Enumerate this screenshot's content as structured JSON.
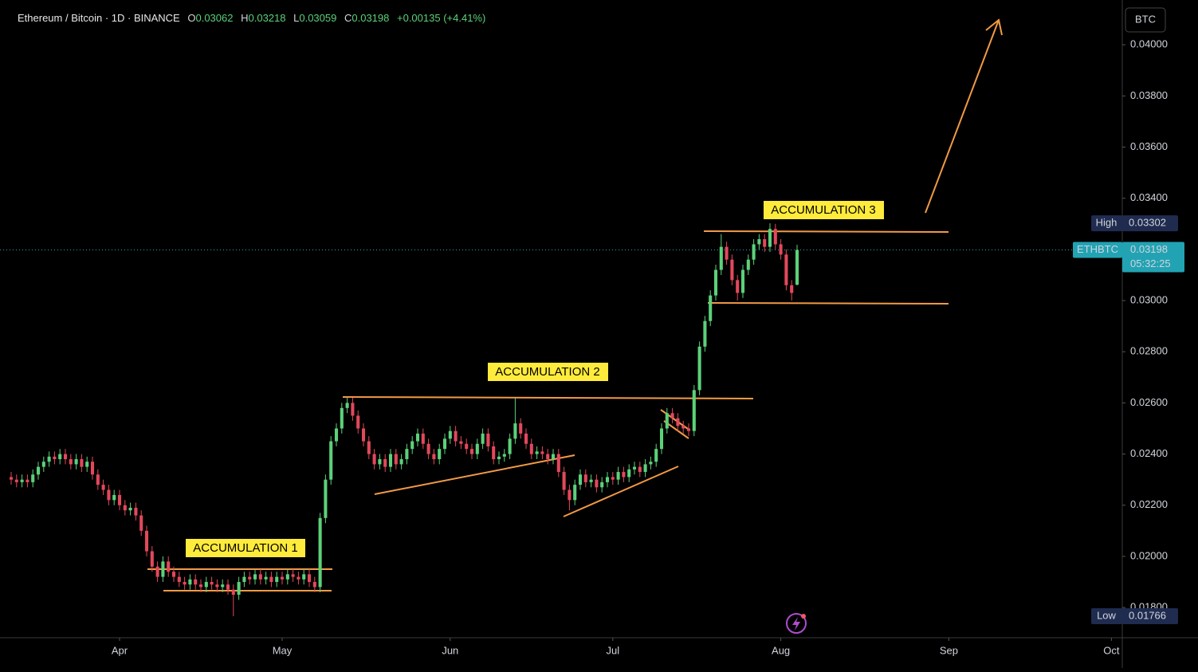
{
  "chart_data": {
    "type": "candlestick",
    "title": "Ethereum / Bitcoin · 1D · BINANCE",
    "ohlc_labels": [
      "O",
      "H",
      "L",
      "C"
    ],
    "change": "+0.00135 (+4.41%)",
    "currency": "BTC",
    "symbol": "ETHBTC",
    "countdown": "05:32:25",
    "high_label": "High",
    "low_label": "Low",
    "annotations": [
      "ACCUMULATION 1",
      "ACCUMULATION 2",
      "ACCUMULATION 3"
    ],
    "up_color": "#5cd17a",
    "down_color": "#e2485c",
    "xlim": [
      -2.06,
      205
    ],
    "xticks": [
      {
        "value": 20,
        "label": "Apr"
      },
      {
        "value": 50,
        "label": "May"
      },
      {
        "value": 81,
        "label": "Jun"
      },
      {
        "value": 111,
        "label": "Jul"
      },
      {
        "value": 142,
        "label": "Aug"
      },
      {
        "value": 173,
        "label": "Sep"
      },
      {
        "value": 203,
        "label": "Oct"
      }
    ],
    "ylim": [
      0.01682,
      0.0415
    ],
    "yticks": [
      {
        "value": 0.018,
        "label": "0.01800"
      },
      {
        "value": 0.02,
        "label": "0.02000"
      },
      {
        "value": 0.022,
        "label": "0.02200"
      },
      {
        "value": 0.024,
        "label": "0.02400"
      },
      {
        "value": 0.026,
        "label": "0.02600"
      },
      {
        "value": 0.028,
        "label": "0.02800"
      },
      {
        "value": 0.03,
        "label": "0.03000"
      },
      {
        "value": 0.032,
        "label": "0.03200"
      },
      {
        "value": 0.034,
        "label": "0.03400"
      },
      {
        "value": 0.036,
        "label": "0.03600"
      },
      {
        "value": 0.038,
        "label": "0.03800"
      },
      {
        "value": 0.04,
        "label": "0.04000"
      }
    ],
    "open": [
      0.0231,
      0.023,
      0.0229,
      0.023,
      0.0229,
      0.0232,
      0.0235,
      0.0237,
      0.0239,
      0.0238,
      0.024,
      0.0238,
      0.0236,
      0.0238,
      0.0235,
      0.0237,
      0.0232,
      0.0228,
      0.0226,
      0.0222,
      0.0224,
      0.022,
      0.0218,
      0.0219,
      0.0216,
      0.021,
      0.0202,
      0.0196,
      0.0192,
      0.0198,
      0.0194,
      0.0192,
      0.019,
      0.0189,
      0.0191,
      0.0189,
      0.0188,
      0.019,
      0.0189,
      0.0188,
      0.0189,
      0.0187,
      0.0185,
      0.019,
      0.0192,
      0.0191,
      0.0193,
      0.0191,
      0.0192,
      0.019,
      0.0192,
      0.0191,
      0.0193,
      0.0192,
      0.0191,
      0.0193,
      0.019,
      0.0188,
      0.0215,
      0.023,
      0.0245,
      0.025,
      0.0258,
      0.026,
      0.0255,
      0.025,
      0.0245,
      0.024,
      0.0236,
      0.0238,
      0.0235,
      0.024,
      0.0236,
      0.0238,
      0.0242,
      0.0245,
      0.0248,
      0.0244,
      0.024,
      0.0238,
      0.0242,
      0.0246,
      0.0249,
      0.0245,
      0.0244,
      0.0242,
      0.024,
      0.0244,
      0.0248,
      0.0243,
      0.0238,
      0.0239,
      0.024,
      0.0246,
      0.0252,
      0.0248,
      0.0244,
      0.024,
      0.0241,
      0.024,
      0.0238,
      0.024,
      0.0233,
      0.0226,
      0.0222,
      0.0228,
      0.0232,
      0.0229,
      0.023,
      0.0227,
      0.0229,
      0.0231,
      0.023,
      0.0233,
      0.0231,
      0.0234,
      0.0235,
      0.0233,
      0.0236,
      0.0237,
      0.0242,
      0.025,
      0.0256,
      0.0254,
      0.0251,
      0.025,
      0.0249,
      0.0265,
      0.0282,
      0.0292,
      0.0302,
      0.0312,
      0.0321,
      0.0316,
      0.0308,
      0.0303,
      0.0312,
      0.0316,
      0.0322,
      0.0324,
      0.0321,
      0.0328,
      0.0322,
      0.0318,
      0.0306,
      0.03062
    ],
    "high": [
      0.0233,
      0.0232,
      0.0232,
      0.0232,
      0.0234,
      0.0237,
      0.0239,
      0.0241,
      0.0241,
      0.0242,
      0.0242,
      0.024,
      0.024,
      0.024,
      0.0239,
      0.0239,
      0.0234,
      0.023,
      0.0228,
      0.0226,
      0.0226,
      0.0222,
      0.0221,
      0.0221,
      0.0218,
      0.0212,
      0.0204,
      0.0198,
      0.02,
      0.02,
      0.0196,
      0.0194,
      0.0192,
      0.0193,
      0.0193,
      0.0191,
      0.0192,
      0.0192,
      0.0191,
      0.0191,
      0.0191,
      0.0189,
      0.0192,
      0.0194,
      0.0194,
      0.0195,
      0.0195,
      0.0194,
      0.0194,
      0.0194,
      0.0194,
      0.0195,
      0.0195,
      0.0194,
      0.0195,
      0.0195,
      0.0192,
      0.0217,
      0.0232,
      0.0247,
      0.0252,
      0.026,
      0.0262,
      0.0262,
      0.0257,
      0.0252,
      0.0247,
      0.0242,
      0.024,
      0.024,
      0.0242,
      0.0242,
      0.024,
      0.0244,
      0.0247,
      0.025,
      0.025,
      0.0246,
      0.0242,
      0.0244,
      0.0248,
      0.0251,
      0.0251,
      0.0247,
      0.0246,
      0.0244,
      0.0246,
      0.025,
      0.025,
      0.0245,
      0.0241,
      0.0242,
      0.0248,
      0.0262,
      0.0254,
      0.025,
      0.0246,
      0.0243,
      0.0243,
      0.0242,
      0.0242,
      0.0242,
      0.0235,
      0.0228,
      0.023,
      0.0234,
      0.0234,
      0.0232,
      0.0232,
      0.0231,
      0.0233,
      0.0233,
      0.0235,
      0.0235,
      0.0236,
      0.0237,
      0.0237,
      0.0238,
      0.0239,
      0.0244,
      0.0252,
      0.0258,
      0.0258,
      0.0256,
      0.0253,
      0.0252,
      0.0267,
      0.0284,
      0.0294,
      0.0304,
      0.0314,
      0.0326,
      0.0323,
      0.0318,
      0.031,
      0.0314,
      0.0318,
      0.0324,
      0.0326,
      0.0326,
      0.03302,
      0.033,
      0.0324,
      0.032,
      0.0308,
      0.03218
    ],
    "low": [
      0.0228,
      0.0227,
      0.0227,
      0.0227,
      0.0227,
      0.023,
      0.0233,
      0.0235,
      0.0236,
      0.0236,
      0.0236,
      0.0234,
      0.0234,
      0.0233,
      0.0233,
      0.023,
      0.0226,
      0.0224,
      0.022,
      0.022,
      0.0218,
      0.0216,
      0.0216,
      0.0214,
      0.0208,
      0.02,
      0.0194,
      0.019,
      0.019,
      0.0192,
      0.019,
      0.0188,
      0.0187,
      0.0187,
      0.0187,
      0.0186,
      0.0186,
      0.0187,
      0.0186,
      0.0186,
      0.0185,
      0.01766,
      0.0183,
      0.0188,
      0.0189,
      0.0189,
      0.0189,
      0.0189,
      0.0188,
      0.0188,
      0.0189,
      0.0189,
      0.019,
      0.0189,
      0.0189,
      0.0188,
      0.0186,
      0.0186,
      0.0213,
      0.0228,
      0.0243,
      0.0248,
      0.0256,
      0.0253,
      0.0248,
      0.0243,
      0.0238,
      0.0234,
      0.0234,
      0.0233,
      0.0233,
      0.0234,
      0.0234,
      0.0236,
      0.024,
      0.0243,
      0.0242,
      0.0238,
      0.0236,
      0.0236,
      0.024,
      0.0244,
      0.0243,
      0.0242,
      0.024,
      0.0238,
      0.0238,
      0.0242,
      0.0241,
      0.0236,
      0.0236,
      0.0237,
      0.0238,
      0.0244,
      0.0246,
      0.0242,
      0.0238,
      0.0238,
      0.0238,
      0.0236,
      0.0236,
      0.0231,
      0.0224,
      0.0218,
      0.022,
      0.0226,
      0.0227,
      0.0227,
      0.0225,
      0.0225,
      0.0227,
      0.0228,
      0.0228,
      0.0229,
      0.0229,
      0.0232,
      0.0231,
      0.0231,
      0.0234,
      0.0235,
      0.024,
      0.0248,
      0.0252,
      0.0249,
      0.0248,
      0.0247,
      0.0247,
      0.0263,
      0.028,
      0.029,
      0.03,
      0.031,
      0.0314,
      0.0306,
      0.03,
      0.0301,
      0.031,
      0.0314,
      0.032,
      0.0319,
      0.0319,
      0.032,
      0.0316,
      0.0304,
      0.03,
      0.03059
    ],
    "close": [
      0.023,
      0.0229,
      0.023,
      0.0229,
      0.0232,
      0.0235,
      0.0237,
      0.0239,
      0.0238,
      0.024,
      0.0238,
      0.0236,
      0.0238,
      0.0235,
      0.0237,
      0.0232,
      0.0228,
      0.0226,
      0.0222,
      0.0224,
      0.022,
      0.0218,
      0.0219,
      0.0216,
      0.021,
      0.0202,
      0.0196,
      0.0192,
      0.0198,
      0.0194,
      0.0192,
      0.019,
      0.0189,
      0.0191,
      0.0189,
      0.0188,
      0.019,
      0.0189,
      0.0188,
      0.0189,
      0.0187,
      0.0185,
      0.019,
      0.0192,
      0.0191,
      0.0193,
      0.0191,
      0.0192,
      0.019,
      0.0192,
      0.0191,
      0.0193,
      0.0192,
      0.0191,
      0.0193,
      0.019,
      0.0188,
      0.0215,
      0.023,
      0.0245,
      0.025,
      0.0258,
      0.026,
      0.0255,
      0.025,
      0.0245,
      0.024,
      0.0236,
      0.0238,
      0.0235,
      0.024,
      0.0236,
      0.0238,
      0.0242,
      0.0245,
      0.0248,
      0.0244,
      0.024,
      0.0238,
      0.0242,
      0.0246,
      0.0249,
      0.0245,
      0.0244,
      0.0242,
      0.024,
      0.0244,
      0.0248,
      0.0243,
      0.0238,
      0.0239,
      0.024,
      0.0246,
      0.0252,
      0.0248,
      0.0244,
      0.024,
      0.0241,
      0.024,
      0.0238,
      0.024,
      0.0233,
      0.0226,
      0.0222,
      0.0228,
      0.0232,
      0.0229,
      0.023,
      0.0227,
      0.0229,
      0.0231,
      0.023,
      0.0233,
      0.0231,
      0.0234,
      0.0235,
      0.0233,
      0.0236,
      0.0237,
      0.0242,
      0.025,
      0.0256,
      0.0254,
      0.0251,
      0.025,
      0.0249,
      0.0265,
      0.0282,
      0.0292,
      0.0302,
      0.0312,
      0.0321,
      0.0316,
      0.0308,
      0.0303,
      0.0312,
      0.0316,
      0.0322,
      0.0324,
      0.0321,
      0.0328,
      0.0322,
      0.0318,
      0.0306,
      0.0303,
      0.03198
    ]
  }
}
